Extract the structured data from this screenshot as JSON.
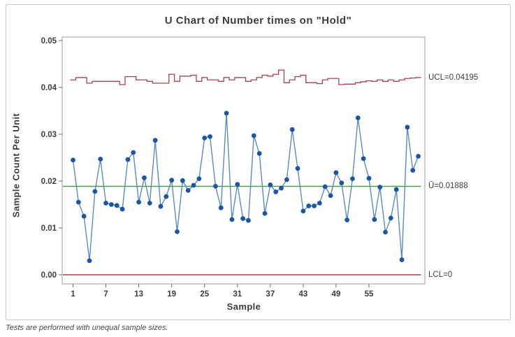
{
  "chart_data": {
    "type": "line",
    "chart_kind": "u-control-chart",
    "title": "U Chart of Number times on \"Hold\"",
    "xlabel": "Sample",
    "ylabel": "Sample Count Per Unit",
    "x_ticks": [
      1,
      7,
      13,
      19,
      25,
      31,
      37,
      43,
      49,
      55
    ],
    "y_ticks": [
      0.0,
      0.01,
      0.02,
      0.03,
      0.04,
      0.05
    ],
    "ylim": [
      0,
      0.05
    ],
    "n_samples": 64,
    "series": [
      {
        "name": "Sample Count Per Unit",
        "values": [
          0.0245,
          0.0155,
          0.0125,
          0.003,
          0.0178,
          0.0247,
          0.0153,
          0.015,
          0.0148,
          0.014,
          0.0246,
          0.0261,
          0.0155,
          0.0207,
          0.0153,
          0.0287,
          0.0146,
          0.0167,
          0.0202,
          0.0092,
          0.0201,
          0.018,
          0.0191,
          0.0205,
          0.0292,
          0.0295,
          0.0189,
          0.0143,
          0.0345,
          0.0118,
          0.0193,
          0.012,
          0.0116,
          0.0297,
          0.0259,
          0.0131,
          0.0192,
          0.0177,
          0.0185,
          0.0203,
          0.031,
          0.0227,
          0.0136,
          0.0147,
          0.0147,
          0.0153,
          0.0188,
          0.0169,
          0.0218,
          0.0196,
          0.0117,
          0.0205,
          0.0335,
          0.0248,
          0.0206,
          0.0118,
          0.0187,
          0.0091,
          0.0121,
          0.0182,
          0.0032,
          0.0315,
          0.0223,
          0.0253
        ]
      }
    ],
    "center_line": {
      "label": "Ū=0.01888",
      "value": 0.01888
    },
    "ucl": {
      "label": "UCL=0.04195",
      "value": 0.04195,
      "per_sample": [
        0.0416,
        0.0421,
        0.0421,
        0.0409,
        0.0413,
        0.0413,
        0.0413,
        0.0413,
        0.0413,
        0.0406,
        0.0423,
        0.0423,
        0.0416,
        0.0416,
        0.0413,
        0.0409,
        0.0409,
        0.0409,
        0.0428,
        0.0413,
        0.0424,
        0.0424,
        0.0426,
        0.0413,
        0.0421,
        0.0416,
        0.0416,
        0.0413,
        0.0421,
        0.0416,
        0.0421,
        0.0421,
        0.0413,
        0.0416,
        0.0421,
        0.0426,
        0.0424,
        0.0428,
        0.0437,
        0.041,
        0.0416,
        0.0423,
        0.0426,
        0.041,
        0.041,
        0.0408,
        0.0416,
        0.0419,
        0.0419,
        0.0406,
        0.0407,
        0.0407,
        0.041,
        0.0412,
        0.0414,
        0.0413,
        0.0416,
        0.0413,
        0.0416,
        0.0413,
        0.0416,
        0.0419,
        0.042,
        0.0421
      ]
    },
    "lcl": {
      "label": "LCL=0",
      "value": 0
    },
    "note": "Tests are performed with unequal sample sizes."
  },
  "colors": {
    "series_line": "#5b8ac2",
    "marker": "#1b55a4",
    "center_line": "#44a249",
    "control_limit": "#a6444d",
    "frame": "#9e9e9e",
    "tick": "#6e6e6e",
    "text": "#3d3d3d"
  }
}
